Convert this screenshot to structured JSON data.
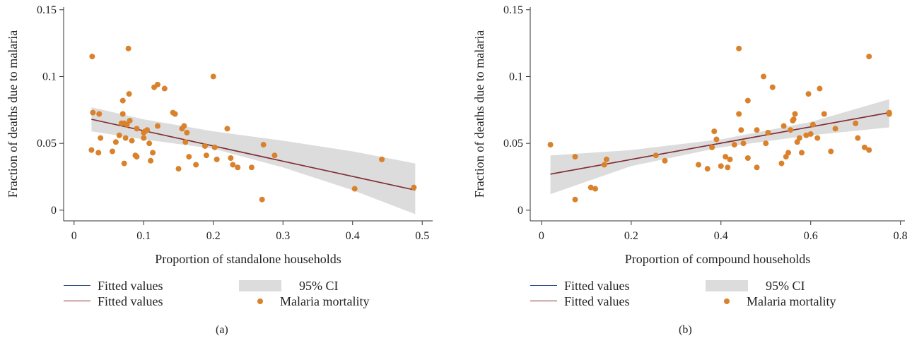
{
  "colors": {
    "fit_blue": "#1f3f7a",
    "fit_red": "#8b2b2b",
    "ci_fill": "#dcdcdc",
    "points": "#d9822b"
  },
  "legend": {
    "fitted_1": "Fitted values",
    "fitted_2": "Fitted values",
    "ci": "95% CI",
    "points": "Malaria mortality"
  },
  "chart_data": [
    {
      "type": "scatter",
      "panel": "(a)",
      "xlabel": "Proportion of standalone households",
      "ylabel": "Fraction of deaths due to malaria",
      "xlim": [
        -0.015,
        0.515
      ],
      "ylim": [
        -0.008,
        0.152
      ],
      "xticks": [
        0,
        0.1,
        0.2,
        0.3,
        0.4,
        0.5
      ],
      "xticklabels": [
        "0",
        "0.1",
        "0.2",
        "0.3",
        "0.4",
        "0.5"
      ],
      "yticks": [
        0,
        0.05,
        0.1,
        0.15
      ],
      "yticklabels": [
        "0",
        "0.05",
        "0.1",
        "0.15"
      ],
      "fit": {
        "x": [
          0.025,
          0.49
        ],
        "y": [
          0.068,
          0.015
        ]
      },
      "ci": {
        "x": [
          0.025,
          0.1,
          0.2,
          0.3,
          0.4,
          0.49
        ],
        "upper": [
          0.077,
          0.068,
          0.059,
          0.052,
          0.044,
          0.035
        ],
        "lower": [
          0.059,
          0.053,
          0.046,
          0.032,
          0.015,
          -0.003
        ]
      },
      "points": {
        "x": [
          0.025,
          0.026,
          0.027,
          0.035,
          0.036,
          0.038,
          0.055,
          0.06,
          0.065,
          0.068,
          0.07,
          0.07,
          0.072,
          0.072,
          0.074,
          0.076,
          0.078,
          0.079,
          0.08,
          0.083,
          0.088,
          0.09,
          0.09,
          0.1,
          0.1,
          0.102,
          0.105,
          0.108,
          0.11,
          0.113,
          0.115,
          0.12,
          0.12,
          0.13,
          0.142,
          0.145,
          0.15,
          0.155,
          0.158,
          0.16,
          0.162,
          0.165,
          0.175,
          0.188,
          0.19,
          0.2,
          0.202,
          0.205,
          0.22,
          0.225,
          0.228,
          0.235,
          0.255,
          0.27,
          0.272,
          0.288,
          0.403,
          0.442,
          0.488
        ],
        "y": [
          0.045,
          0.115,
          0.073,
          0.043,
          0.072,
          0.054,
          0.044,
          0.051,
          0.056,
          0.065,
          0.082,
          0.072,
          0.065,
          0.035,
          0.054,
          0.064,
          0.121,
          0.087,
          0.067,
          0.052,
          0.041,
          0.061,
          0.04,
          0.054,
          0.058,
          0.059,
          0.06,
          0.05,
          0.037,
          0.043,
          0.092,
          0.063,
          0.094,
          0.091,
          0.073,
          0.072,
          0.031,
          0.061,
          0.063,
          0.051,
          0.058,
          0.04,
          0.034,
          0.048,
          0.041,
          0.1,
          0.047,
          0.038,
          0.061,
          0.039,
          0.034,
          0.032,
          0.032,
          0.008,
          0.049,
          0.041,
          0.016,
          0.038,
          0.017
        ]
      }
    },
    {
      "type": "scatter",
      "panel": "(b)",
      "xlabel": "Proportion of compound households",
      "ylabel": "Fraction of deaths due to malaria",
      "xlim": [
        -0.025,
        0.81
      ],
      "ylim": [
        -0.008,
        0.152
      ],
      "xticks": [
        0,
        0.2,
        0.4,
        0.6,
        0.8
      ],
      "xticklabels": [
        "0",
        "0.2",
        "0.4",
        "0.6",
        "0.8"
      ],
      "yticks": [
        0,
        0.05,
        0.1,
        0.15
      ],
      "yticklabels": [
        "0",
        "0.05",
        "0.1",
        "0.15"
      ],
      "fit": {
        "x": [
          0.02,
          0.775
        ],
        "y": [
          0.027,
          0.073
        ]
      },
      "ci": {
        "x": [
          0.02,
          0.2,
          0.4,
          0.6,
          0.775
        ],
        "upper": [
          0.041,
          0.045,
          0.053,
          0.066,
          0.083
        ],
        "lower": [
          0.012,
          0.033,
          0.047,
          0.056,
          0.062
        ]
      },
      "points": {
        "x": [
          0.02,
          0.075,
          0.075,
          0.11,
          0.12,
          0.14,
          0.145,
          0.255,
          0.275,
          0.35,
          0.37,
          0.38,
          0.385,
          0.39,
          0.4,
          0.41,
          0.415,
          0.42,
          0.43,
          0.44,
          0.44,
          0.445,
          0.45,
          0.46,
          0.46,
          0.48,
          0.48,
          0.495,
          0.5,
          0.505,
          0.515,
          0.535,
          0.54,
          0.545,
          0.55,
          0.555,
          0.56,
          0.562,
          0.565,
          0.57,
          0.575,
          0.58,
          0.59,
          0.595,
          0.6,
          0.605,
          0.615,
          0.62,
          0.63,
          0.645,
          0.655,
          0.7,
          0.705,
          0.72,
          0.73,
          0.73,
          0.775,
          0.775
        ],
        "y": [
          0.049,
          0.008,
          0.04,
          0.017,
          0.016,
          0.034,
          0.038,
          0.041,
          0.037,
          0.034,
          0.031,
          0.047,
          0.059,
          0.053,
          0.033,
          0.04,
          0.032,
          0.038,
          0.049,
          0.072,
          0.121,
          0.06,
          0.05,
          0.082,
          0.039,
          0.06,
          0.032,
          0.1,
          0.05,
          0.058,
          0.092,
          0.035,
          0.063,
          0.04,
          0.043,
          0.06,
          0.067,
          0.068,
          0.072,
          0.051,
          0.054,
          0.043,
          0.056,
          0.087,
          0.057,
          0.064,
          0.054,
          0.091,
          0.072,
          0.044,
          0.061,
          0.065,
          0.054,
          0.047,
          0.045,
          0.115,
          0.072,
          0.073
        ]
      }
    }
  ]
}
